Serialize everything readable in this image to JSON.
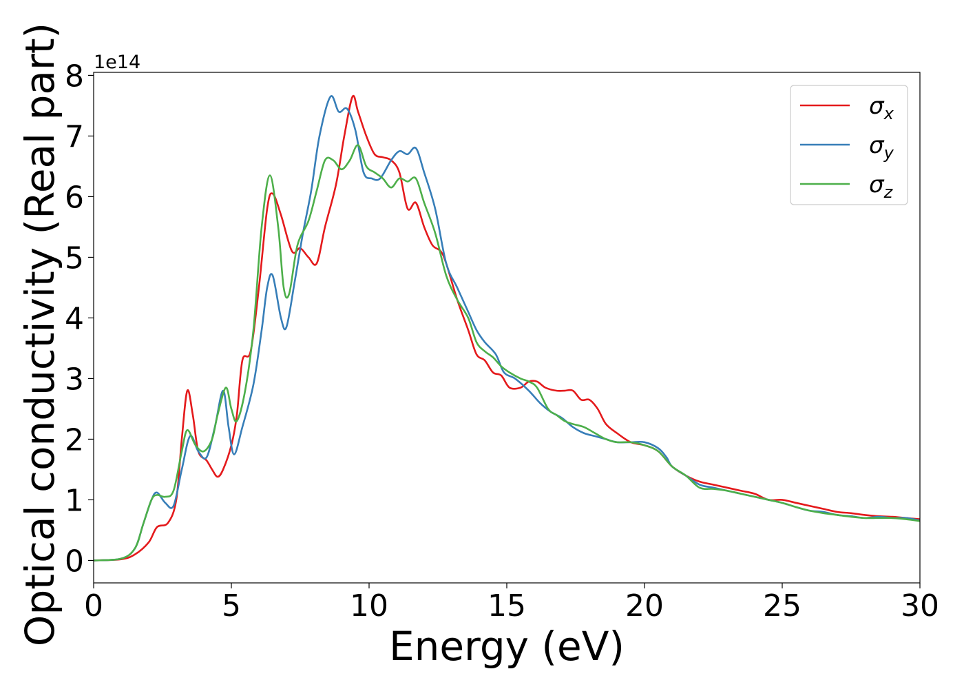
{
  "chart_data": {
    "type": "line",
    "xlabel": "Energy (eV)",
    "ylabel": "Optical conductivity (Real part)",
    "y_offset_label": "1e14",
    "xlim": [
      0,
      30
    ],
    "ylim": [
      -0.37,
      8.05
    ],
    "x_ticks": [
      0,
      5,
      10,
      15,
      20,
      25,
      30
    ],
    "y_ticks": [
      0,
      1,
      2,
      3,
      4,
      5,
      6,
      7,
      8
    ],
    "x_tick_labels": [
      "0",
      "5",
      "10",
      "15",
      "20",
      "25",
      "30"
    ],
    "y_tick_labels": [
      "0",
      "1",
      "2",
      "3",
      "4",
      "5",
      "6",
      "7",
      "8"
    ],
    "grid": false,
    "legend_position": "top-right",
    "series": [
      {
        "name": "σ",
        "subscript": "x",
        "color": "#e41a1c",
        "points": [
          [
            0,
            0
          ],
          [
            1.0,
            0.02
          ],
          [
            1.5,
            0.1
          ],
          [
            2.0,
            0.3
          ],
          [
            2.3,
            0.55
          ],
          [
            2.7,
            0.62
          ],
          [
            3.0,
            1.0
          ],
          [
            3.2,
            2.0
          ],
          [
            3.4,
            2.8
          ],
          [
            3.6,
            2.4
          ],
          [
            3.8,
            1.8
          ],
          [
            4.1,
            1.65
          ],
          [
            4.3,
            1.5
          ],
          [
            4.5,
            1.38
          ],
          [
            4.7,
            1.5
          ],
          [
            5.0,
            1.9
          ],
          [
            5.2,
            2.4
          ],
          [
            5.4,
            3.3
          ],
          [
            5.7,
            3.45
          ],
          [
            6.0,
            4.5
          ],
          [
            6.3,
            5.8
          ],
          [
            6.5,
            6.05
          ],
          [
            6.8,
            5.7
          ],
          [
            7.2,
            5.1
          ],
          [
            7.5,
            5.15
          ],
          [
            7.8,
            5.0
          ],
          [
            8.1,
            4.9
          ],
          [
            8.4,
            5.5
          ],
          [
            8.8,
            6.2
          ],
          [
            9.1,
            7.0
          ],
          [
            9.4,
            7.65
          ],
          [
            9.6,
            7.4
          ],
          [
            9.9,
            7.0
          ],
          [
            10.2,
            6.7
          ],
          [
            10.5,
            6.65
          ],
          [
            10.8,
            6.6
          ],
          [
            11.1,
            6.4
          ],
          [
            11.4,
            5.8
          ],
          [
            11.7,
            5.9
          ],
          [
            12.0,
            5.5
          ],
          [
            12.3,
            5.2
          ],
          [
            12.6,
            5.1
          ],
          [
            12.8,
            4.9
          ],
          [
            13.2,
            4.3
          ],
          [
            13.6,
            3.8
          ],
          [
            13.9,
            3.4
          ],
          [
            14.2,
            3.3
          ],
          [
            14.5,
            3.1
          ],
          [
            14.8,
            3.05
          ],
          [
            15.1,
            2.85
          ],
          [
            15.5,
            2.85
          ],
          [
            15.8,
            2.95
          ],
          [
            16.1,
            2.95
          ],
          [
            16.4,
            2.85
          ],
          [
            16.8,
            2.8
          ],
          [
            17.1,
            2.8
          ],
          [
            17.4,
            2.8
          ],
          [
            17.7,
            2.65
          ],
          [
            18.0,
            2.65
          ],
          [
            18.3,
            2.5
          ],
          [
            18.6,
            2.25
          ],
          [
            19.0,
            2.1
          ],
          [
            19.5,
            1.95
          ],
          [
            20.0,
            1.9
          ],
          [
            20.5,
            1.8
          ],
          [
            21.0,
            1.55
          ],
          [
            21.5,
            1.4
          ],
          [
            22.0,
            1.3
          ],
          [
            22.5,
            1.25
          ],
          [
            23.0,
            1.2
          ],
          [
            23.5,
            1.15
          ],
          [
            24.0,
            1.1
          ],
          [
            24.5,
            1.0
          ],
          [
            25.0,
            1.0
          ],
          [
            25.5,
            0.95
          ],
          [
            26.0,
            0.9
          ],
          [
            26.5,
            0.85
          ],
          [
            27.0,
            0.8
          ],
          [
            27.5,
            0.78
          ],
          [
            28.0,
            0.75
          ],
          [
            28.5,
            0.73
          ],
          [
            29.0,
            0.72
          ],
          [
            29.5,
            0.7
          ],
          [
            30.0,
            0.68
          ]
        ]
      },
      {
        "name": "σ",
        "subscript": "y",
        "color": "#377eb8",
        "points": [
          [
            0,
            0
          ],
          [
            1.0,
            0.03
          ],
          [
            1.5,
            0.2
          ],
          [
            1.8,
            0.6
          ],
          [
            2.1,
            1.0
          ],
          [
            2.3,
            1.12
          ],
          [
            2.6,
            0.95
          ],
          [
            2.9,
            0.9
          ],
          [
            3.2,
            1.5
          ],
          [
            3.5,
            2.05
          ],
          [
            3.8,
            1.8
          ],
          [
            4.1,
            1.7
          ],
          [
            4.4,
            2.2
          ],
          [
            4.7,
            2.8
          ],
          [
            4.9,
            2.2
          ],
          [
            5.1,
            1.75
          ],
          [
            5.4,
            2.2
          ],
          [
            5.8,
            2.9
          ],
          [
            6.1,
            3.8
          ],
          [
            6.3,
            4.5
          ],
          [
            6.5,
            4.7
          ],
          [
            6.8,
            4.0
          ],
          [
            7.0,
            3.85
          ],
          [
            7.3,
            4.6
          ],
          [
            7.6,
            5.4
          ],
          [
            7.9,
            6.1
          ],
          [
            8.2,
            7.0
          ],
          [
            8.6,
            7.65
          ],
          [
            8.9,
            7.4
          ],
          [
            9.2,
            7.45
          ],
          [
            9.5,
            7.1
          ],
          [
            9.8,
            6.4
          ],
          [
            10.1,
            6.3
          ],
          [
            10.4,
            6.3
          ],
          [
            10.8,
            6.6
          ],
          [
            11.1,
            6.75
          ],
          [
            11.4,
            6.7
          ],
          [
            11.7,
            6.8
          ],
          [
            12.0,
            6.4
          ],
          [
            12.4,
            5.8
          ],
          [
            12.8,
            4.9
          ],
          [
            13.2,
            4.5
          ],
          [
            13.6,
            4.1
          ],
          [
            13.9,
            3.8
          ],
          [
            14.2,
            3.6
          ],
          [
            14.6,
            3.4
          ],
          [
            14.9,
            3.1
          ],
          [
            15.3,
            3.0
          ],
          [
            15.8,
            2.8
          ],
          [
            16.2,
            2.6
          ],
          [
            16.6,
            2.45
          ],
          [
            17.0,
            2.35
          ],
          [
            17.4,
            2.2
          ],
          [
            17.8,
            2.1
          ],
          [
            18.2,
            2.05
          ],
          [
            18.6,
            2.0
          ],
          [
            19.0,
            1.95
          ],
          [
            19.5,
            1.95
          ],
          [
            20.0,
            1.95
          ],
          [
            20.5,
            1.85
          ],
          [
            20.8,
            1.7
          ],
          [
            21.0,
            1.55
          ],
          [
            21.5,
            1.4
          ],
          [
            22.0,
            1.25
          ],
          [
            22.5,
            1.2
          ],
          [
            23.0,
            1.15
          ],
          [
            23.5,
            1.1
          ],
          [
            24.0,
            1.05
          ],
          [
            24.5,
            1.0
          ],
          [
            25.0,
            0.95
          ],
          [
            25.5,
            0.88
          ],
          [
            26.0,
            0.82
          ],
          [
            26.5,
            0.8
          ],
          [
            27.0,
            0.75
          ],
          [
            27.5,
            0.73
          ],
          [
            28.0,
            0.7
          ],
          [
            28.5,
            0.72
          ],
          [
            29.0,
            0.7
          ],
          [
            29.5,
            0.7
          ],
          [
            30.0,
            0.66
          ]
        ]
      },
      {
        "name": "σ",
        "subscript": "z",
        "color": "#4daf4a",
        "points": [
          [
            0,
            0
          ],
          [
            1.0,
            0.03
          ],
          [
            1.5,
            0.2
          ],
          [
            1.8,
            0.6
          ],
          [
            2.1,
            1.0
          ],
          [
            2.3,
            1.08
          ],
          [
            2.6,
            1.05
          ],
          [
            2.9,
            1.15
          ],
          [
            3.2,
            1.8
          ],
          [
            3.4,
            2.15
          ],
          [
            3.7,
            1.9
          ],
          [
            4.0,
            1.8
          ],
          [
            4.3,
            2.0
          ],
          [
            4.5,
            2.4
          ],
          [
            4.8,
            2.85
          ],
          [
            5.0,
            2.5
          ],
          [
            5.2,
            2.3
          ],
          [
            5.5,
            2.8
          ],
          [
            5.8,
            3.8
          ],
          [
            6.1,
            5.5
          ],
          [
            6.4,
            6.35
          ],
          [
            6.7,
            5.5
          ],
          [
            6.9,
            4.5
          ],
          [
            7.1,
            4.4
          ],
          [
            7.4,
            5.2
          ],
          [
            7.8,
            5.6
          ],
          [
            8.1,
            6.1
          ],
          [
            8.4,
            6.6
          ],
          [
            8.7,
            6.6
          ],
          [
            9.0,
            6.45
          ],
          [
            9.3,
            6.6
          ],
          [
            9.6,
            6.85
          ],
          [
            9.9,
            6.5
          ],
          [
            10.2,
            6.4
          ],
          [
            10.5,
            6.3
          ],
          [
            10.8,
            6.15
          ],
          [
            11.1,
            6.3
          ],
          [
            11.4,
            6.25
          ],
          [
            11.7,
            6.3
          ],
          [
            12.0,
            5.9
          ],
          [
            12.4,
            5.4
          ],
          [
            12.8,
            4.7
          ],
          [
            13.2,
            4.3
          ],
          [
            13.6,
            4.0
          ],
          [
            13.9,
            3.6
          ],
          [
            14.2,
            3.45
          ],
          [
            14.5,
            3.35
          ],
          [
            14.8,
            3.2
          ],
          [
            15.1,
            3.1
          ],
          [
            15.5,
            3.0
          ],
          [
            15.8,
            2.95
          ],
          [
            16.1,
            2.85
          ],
          [
            16.5,
            2.5
          ],
          [
            16.8,
            2.4
          ],
          [
            17.1,
            2.3
          ],
          [
            17.4,
            2.25
          ],
          [
            17.8,
            2.2
          ],
          [
            18.2,
            2.1
          ],
          [
            18.6,
            2.0
          ],
          [
            19.0,
            1.95
          ],
          [
            19.5,
            1.95
          ],
          [
            20.0,
            1.9
          ],
          [
            20.5,
            1.8
          ],
          [
            21.0,
            1.55
          ],
          [
            21.5,
            1.4
          ],
          [
            22.0,
            1.2
          ],
          [
            22.5,
            1.18
          ],
          [
            23.0,
            1.15
          ],
          [
            23.5,
            1.1
          ],
          [
            24.0,
            1.05
          ],
          [
            24.5,
            1.0
          ],
          [
            25.0,
            0.95
          ],
          [
            25.5,
            0.88
          ],
          [
            26.0,
            0.82
          ],
          [
            26.5,
            0.78
          ],
          [
            27.0,
            0.75
          ],
          [
            27.5,
            0.72
          ],
          [
            28.0,
            0.7
          ],
          [
            28.5,
            0.7
          ],
          [
            29.0,
            0.7
          ],
          [
            29.5,
            0.68
          ],
          [
            30.0,
            0.65
          ]
        ]
      }
    ]
  }
}
